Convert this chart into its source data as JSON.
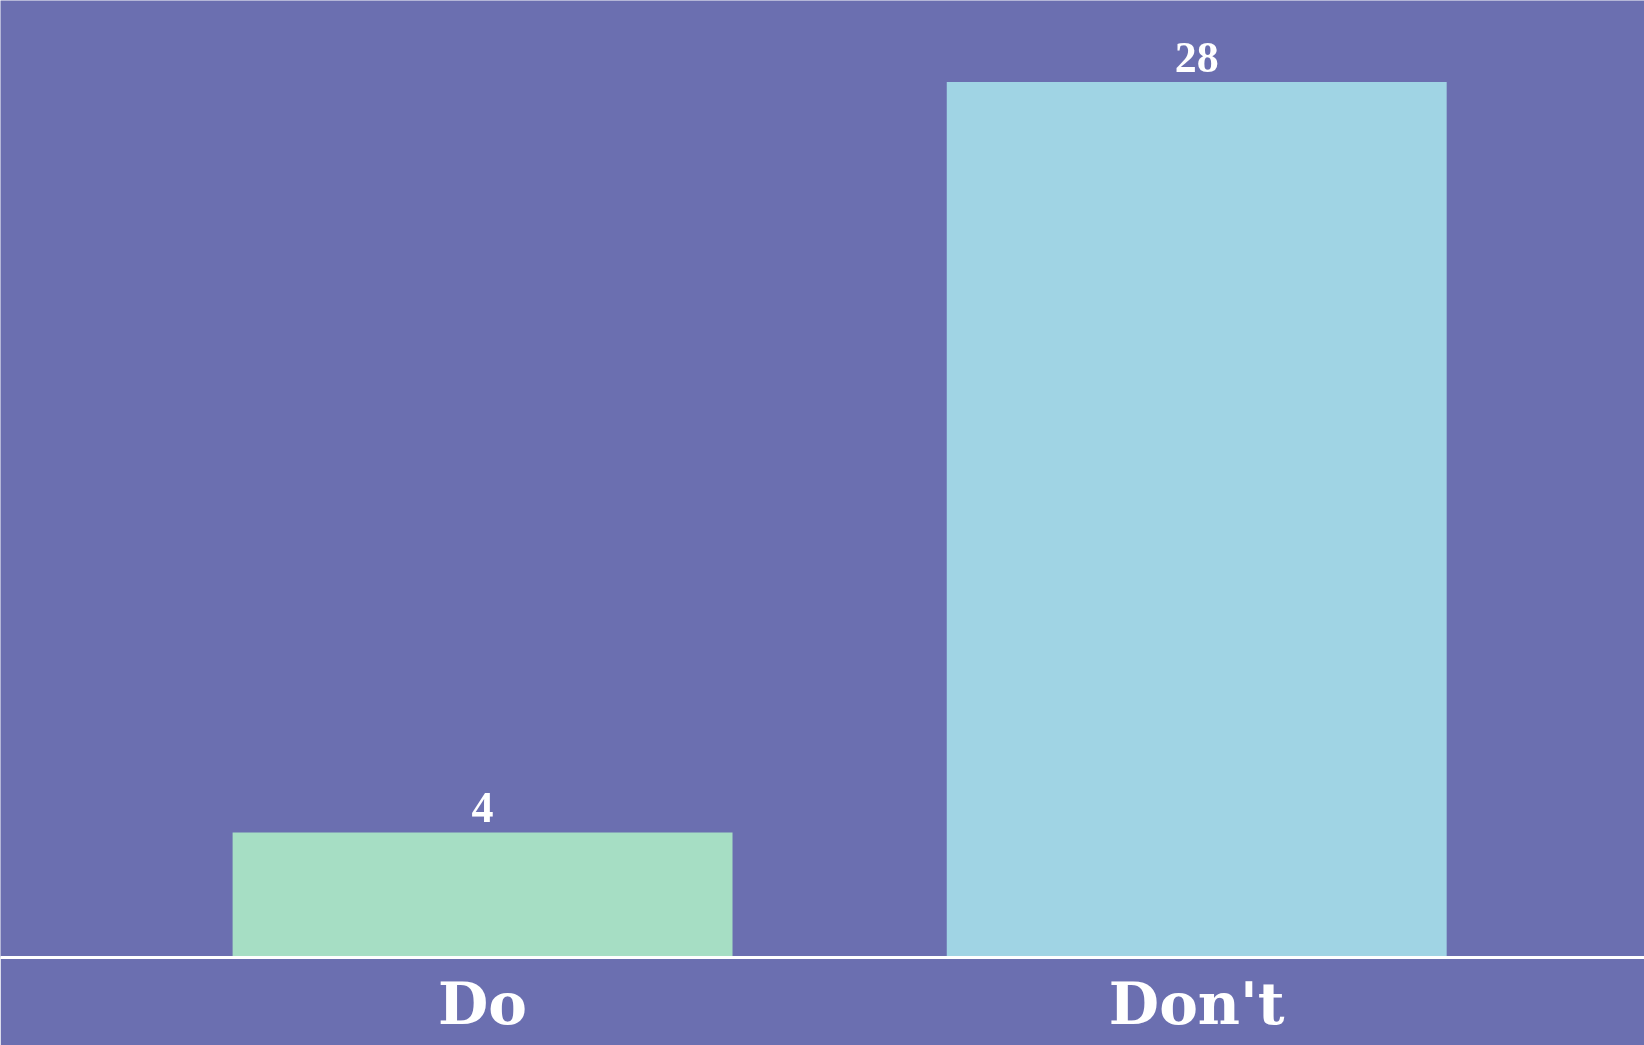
{
  "chart_data": {
    "type": "bar",
    "categories": [
      "Do",
      "Don't"
    ],
    "values": [
      4,
      28
    ],
    "colors": [
      "#a6dec4",
      "#a0d4e4"
    ],
    "data_labels": true
  }
}
